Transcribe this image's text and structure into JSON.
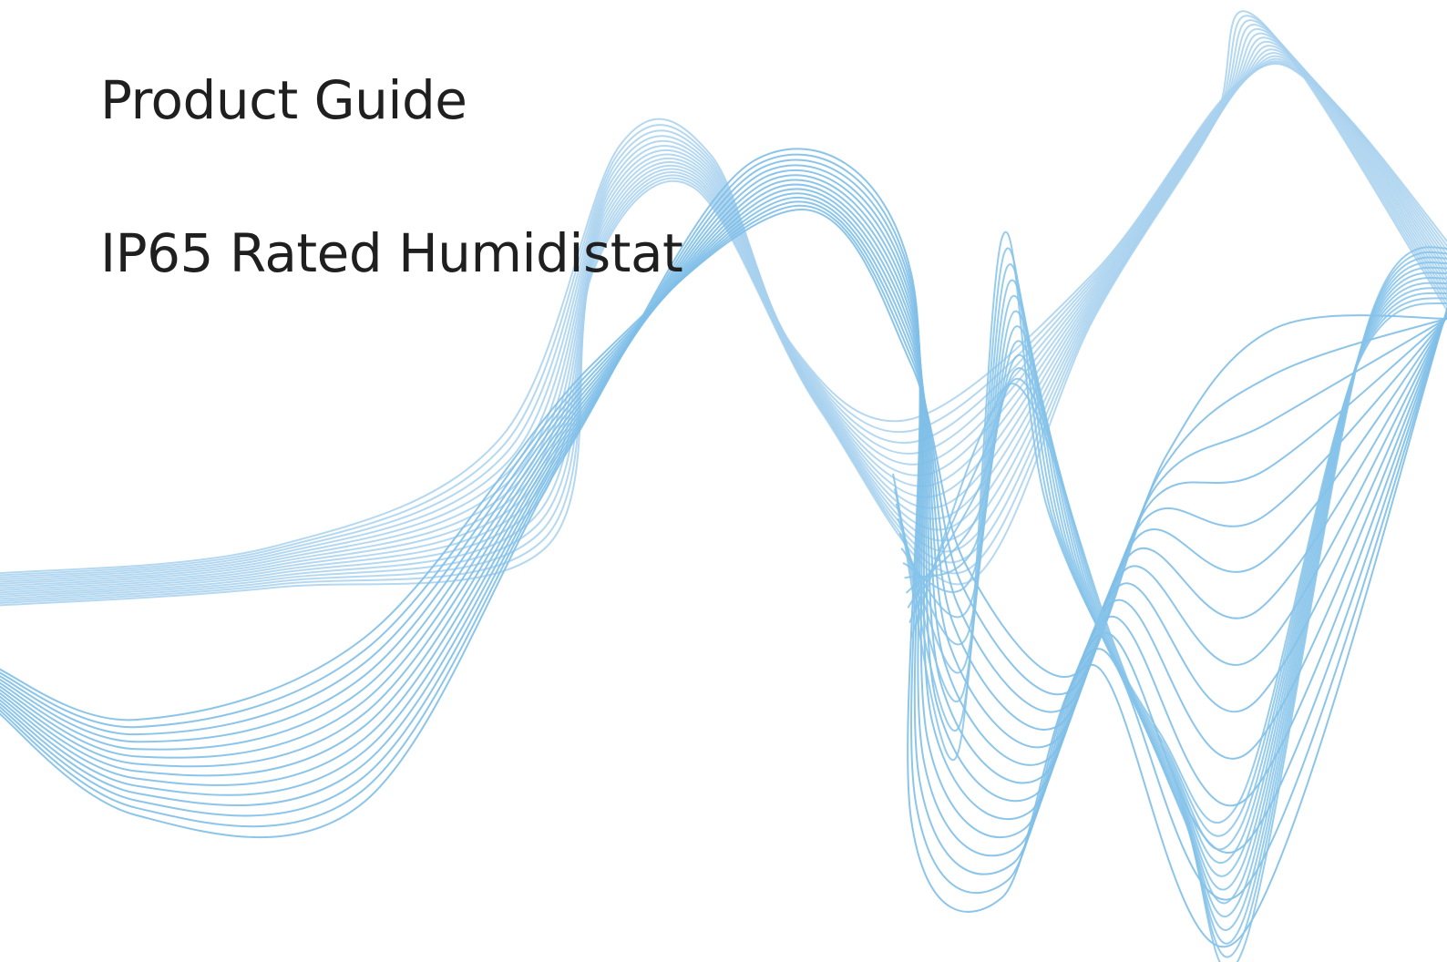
{
  "header": {
    "title": "Product Guide",
    "subtitle": "IP65 Rated Humidistat"
  }
}
